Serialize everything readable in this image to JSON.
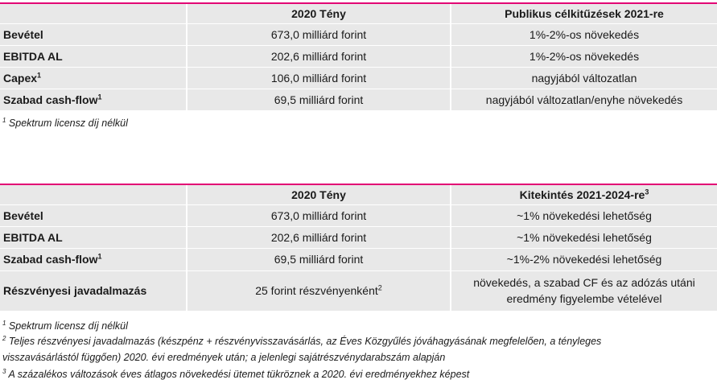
{
  "table1": {
    "header": [
      "",
      "2020 Tény",
      "Publikus célkitűzések 2021-re"
    ],
    "rows": [
      {
        "label": "Bevétel",
        "label_sup": "",
        "actual": "673,0 milliárd forint",
        "actual_sup": "",
        "target": "1%-2%-os növekedés"
      },
      {
        "label": "EBITDA AL",
        "label_sup": "",
        "actual": "202,6 milliárd forint",
        "actual_sup": "",
        "target": "1%-2%-os növekedés"
      },
      {
        "label": "Capex",
        "label_sup": "1",
        "actual": "106,0 milliárd forint",
        "actual_sup": "",
        "target": "nagyjából változatlan"
      },
      {
        "label": "Szabad cash-flow",
        "label_sup": "1",
        "actual": "69,5 milliárd forint",
        "actual_sup": "",
        "target": "nagyjából változatlan/enyhe növekedés"
      }
    ],
    "footnotes": [
      {
        "num": "1",
        "text": " Spektrum licensz díj nélkül"
      }
    ]
  },
  "table2": {
    "header": [
      "",
      "2020 Tény",
      "Kitekintés 2021-2024-re"
    ],
    "header_sup": "3",
    "rows": [
      {
        "label": "Bevétel",
        "label_sup": "",
        "actual": "673,0 milliárd forint",
        "actual_sup": "",
        "target": "~1% növekedési lehetőség"
      },
      {
        "label": "EBITDA AL",
        "label_sup": "",
        "actual": "202,6 milliárd forint",
        "actual_sup": "",
        "target": "~1% növekedési lehetőség"
      },
      {
        "label": "Szabad cash-flow",
        "label_sup": "1",
        "actual": "69,5 milliárd forint",
        "actual_sup": "",
        "target": "~1%-2% növekedési lehetőség"
      },
      {
        "label": "Részvényesi javadalmazás",
        "label_sup": "",
        "actual": "25 forint részvényenként",
        "actual_sup": "2",
        "target_line1": "növekedés, a szabad CF és az adózás utáni",
        "target_line2": "eredmény  figyelembe vételével"
      }
    ],
    "footnotes": [
      {
        "num": "1",
        "text": " Spektrum licensz díj nélkül"
      },
      {
        "num": "2",
        "text": " Teljes részvényesi javadalmazás (készpénz + részvényvisszavásárlás, az Éves Közgyűlés jóváhagyásának megfelelően, a tényleges"
      },
      {
        "num": "",
        "text": "visszavásárlástól függően) 2020. évi eredmények után; a jelenlegi sajátrészvénydarabszám alapján"
      },
      {
        "num": "3",
        "text": " A százalékos változások éves átlagos növekedési ütemet tükröznek a 2020. évi eredményekhez képest"
      }
    ]
  },
  "colors": {
    "accent": "#e20074",
    "cell_bg": "#e8e8e8"
  }
}
